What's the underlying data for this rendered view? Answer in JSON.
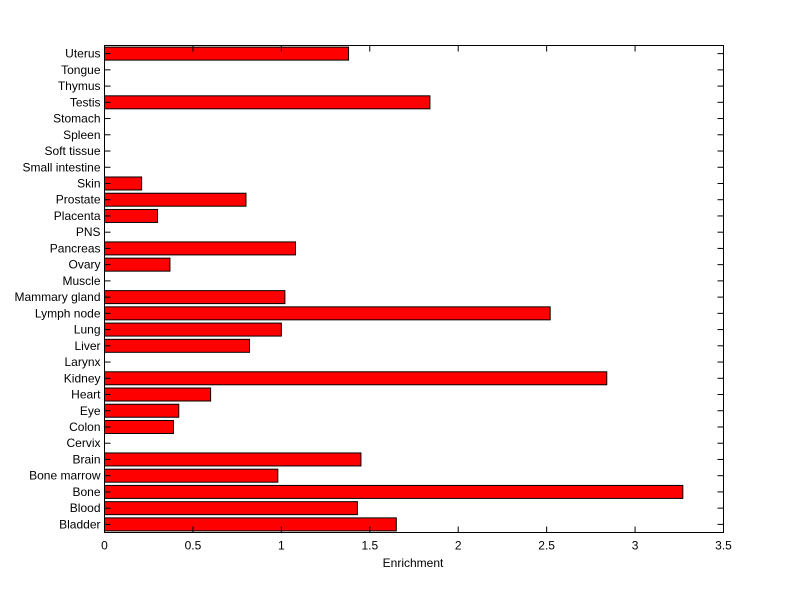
{
  "chart_data": {
    "type": "bar",
    "orientation": "horizontal",
    "title": "",
    "xlabel": "Enrichment",
    "ylabel": "",
    "xlim": [
      0,
      3.5
    ],
    "xticks": [
      0,
      0.5,
      1,
      1.5,
      2,
      2.5,
      3,
      3.5
    ],
    "xtick_labels": [
      "0",
      "0.5",
      "1",
      "1.5",
      "2",
      "2.5",
      "3",
      "3.5"
    ],
    "grid": false,
    "legend": "none",
    "bar_color": "#ff0000",
    "bar_edge_color": "#000000",
    "categories": [
      "Bladder",
      "Blood",
      "Bone",
      "Bone marrow",
      "Brain",
      "Cervix",
      "Colon",
      "Eye",
      "Heart",
      "Kidney",
      "Larynx",
      "Liver",
      "Lung",
      "Lymph node",
      "Mammary gland",
      "Muscle",
      "Ovary",
      "Pancreas",
      "PNS",
      "Placenta",
      "Prostate",
      "Skin",
      "Small intestine",
      "Soft tissue",
      "Spleen",
      "Stomach",
      "Testis",
      "Thymus",
      "Tongue",
      "Uterus"
    ],
    "values": [
      1.65,
      1.43,
      3.27,
      0.98,
      1.45,
      0,
      0.39,
      0.42,
      0.6,
      2.84,
      0,
      0.82,
      1.0,
      2.52,
      1.02,
      0,
      0.37,
      1.08,
      0,
      0.3,
      0.8,
      0.21,
      0,
      0,
      0,
      0,
      1.84,
      0,
      0,
      1.38
    ]
  }
}
